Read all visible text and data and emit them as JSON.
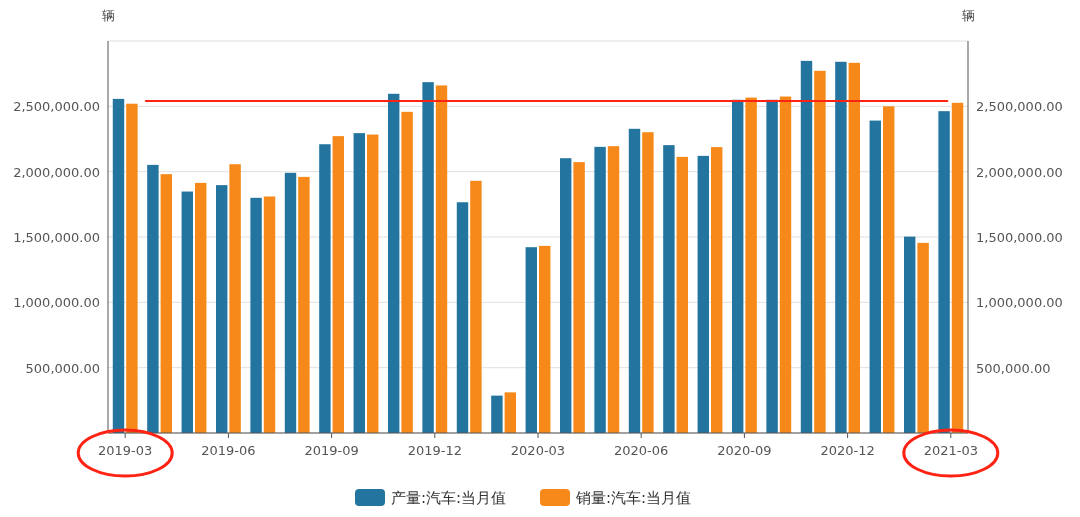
{
  "chart_data": {
    "type": "bar",
    "ylabel": "辆",
    "y2label": "辆",
    "categories": [
      "2019-03",
      null,
      null,
      "2019-06",
      null,
      null,
      "2019-09",
      null,
      null,
      "2019-12",
      null,
      null,
      "2020-03",
      null,
      null,
      "2020-06",
      null,
      null,
      "2020-09",
      null,
      null,
      "2020-12",
      null,
      null,
      "2021-03"
    ],
    "series": [
      {
        "name": "产量:汽车:当月值",
        "color": "#23759f",
        "values": [
          2557000,
          2052000,
          1848000,
          1897000,
          1800000,
          1991000,
          2210000,
          2295000,
          2596000,
          2685000,
          1766000,
          286000,
          1422000,
          2103000,
          2190000,
          2328000,
          2203000,
          2121000,
          2550000,
          2550000,
          2848000,
          2841000,
          2391000,
          1503000,
          2463000
        ]
      },
      {
        "name": "销量:汽车:当月值",
        "color": "#f6891a",
        "axis": "y2",
        "values": [
          2520000,
          1981000,
          1914000,
          2057000,
          1810000,
          1960000,
          2272000,
          2284000,
          2458000,
          2660000,
          1930000,
          311000,
          1432000,
          2073000,
          2195000,
          2302000,
          2113000,
          2188000,
          2567000,
          2575000,
          2772000,
          2833000,
          2500000,
          1455000,
          2527000
        ]
      }
    ],
    "ylim": [
      0,
      3000000
    ],
    "yticks": [
      {
        "value": 0,
        "label": null
      },
      {
        "value": 500000,
        "label": "500,000.00"
      },
      {
        "value": 1000000,
        "label": "1,000,000.00"
      },
      {
        "value": 1500000,
        "label": "1,500,000.00"
      },
      {
        "value": 2000000,
        "label": "2,000,000.00"
      },
      {
        "value": 2500000,
        "label": "2,500,000.00"
      },
      {
        "value": 3000000,
        "label": null
      }
    ],
    "y2lim": [
      0,
      3000000
    ],
    "y2ticks": [
      {
        "value": 0,
        "label": null
      },
      {
        "value": 500000,
        "label": "500,000.00"
      },
      {
        "value": 1000000,
        "label": "1,000,000.00"
      },
      {
        "value": 1500000,
        "label": "1,500,000.00"
      },
      {
        "value": 2000000,
        "label": "2,000,000.00"
      },
      {
        "value": 2500000,
        "label": "2,500,000.00"
      },
      {
        "value": 3000000,
        "label": null
      }
    ],
    "ref_lines": [
      {
        "axis": "y",
        "value": 2540000,
        "label": null,
        "color": "#ff2314"
      }
    ],
    "grid": "y",
    "legend": "bottom"
  }
}
